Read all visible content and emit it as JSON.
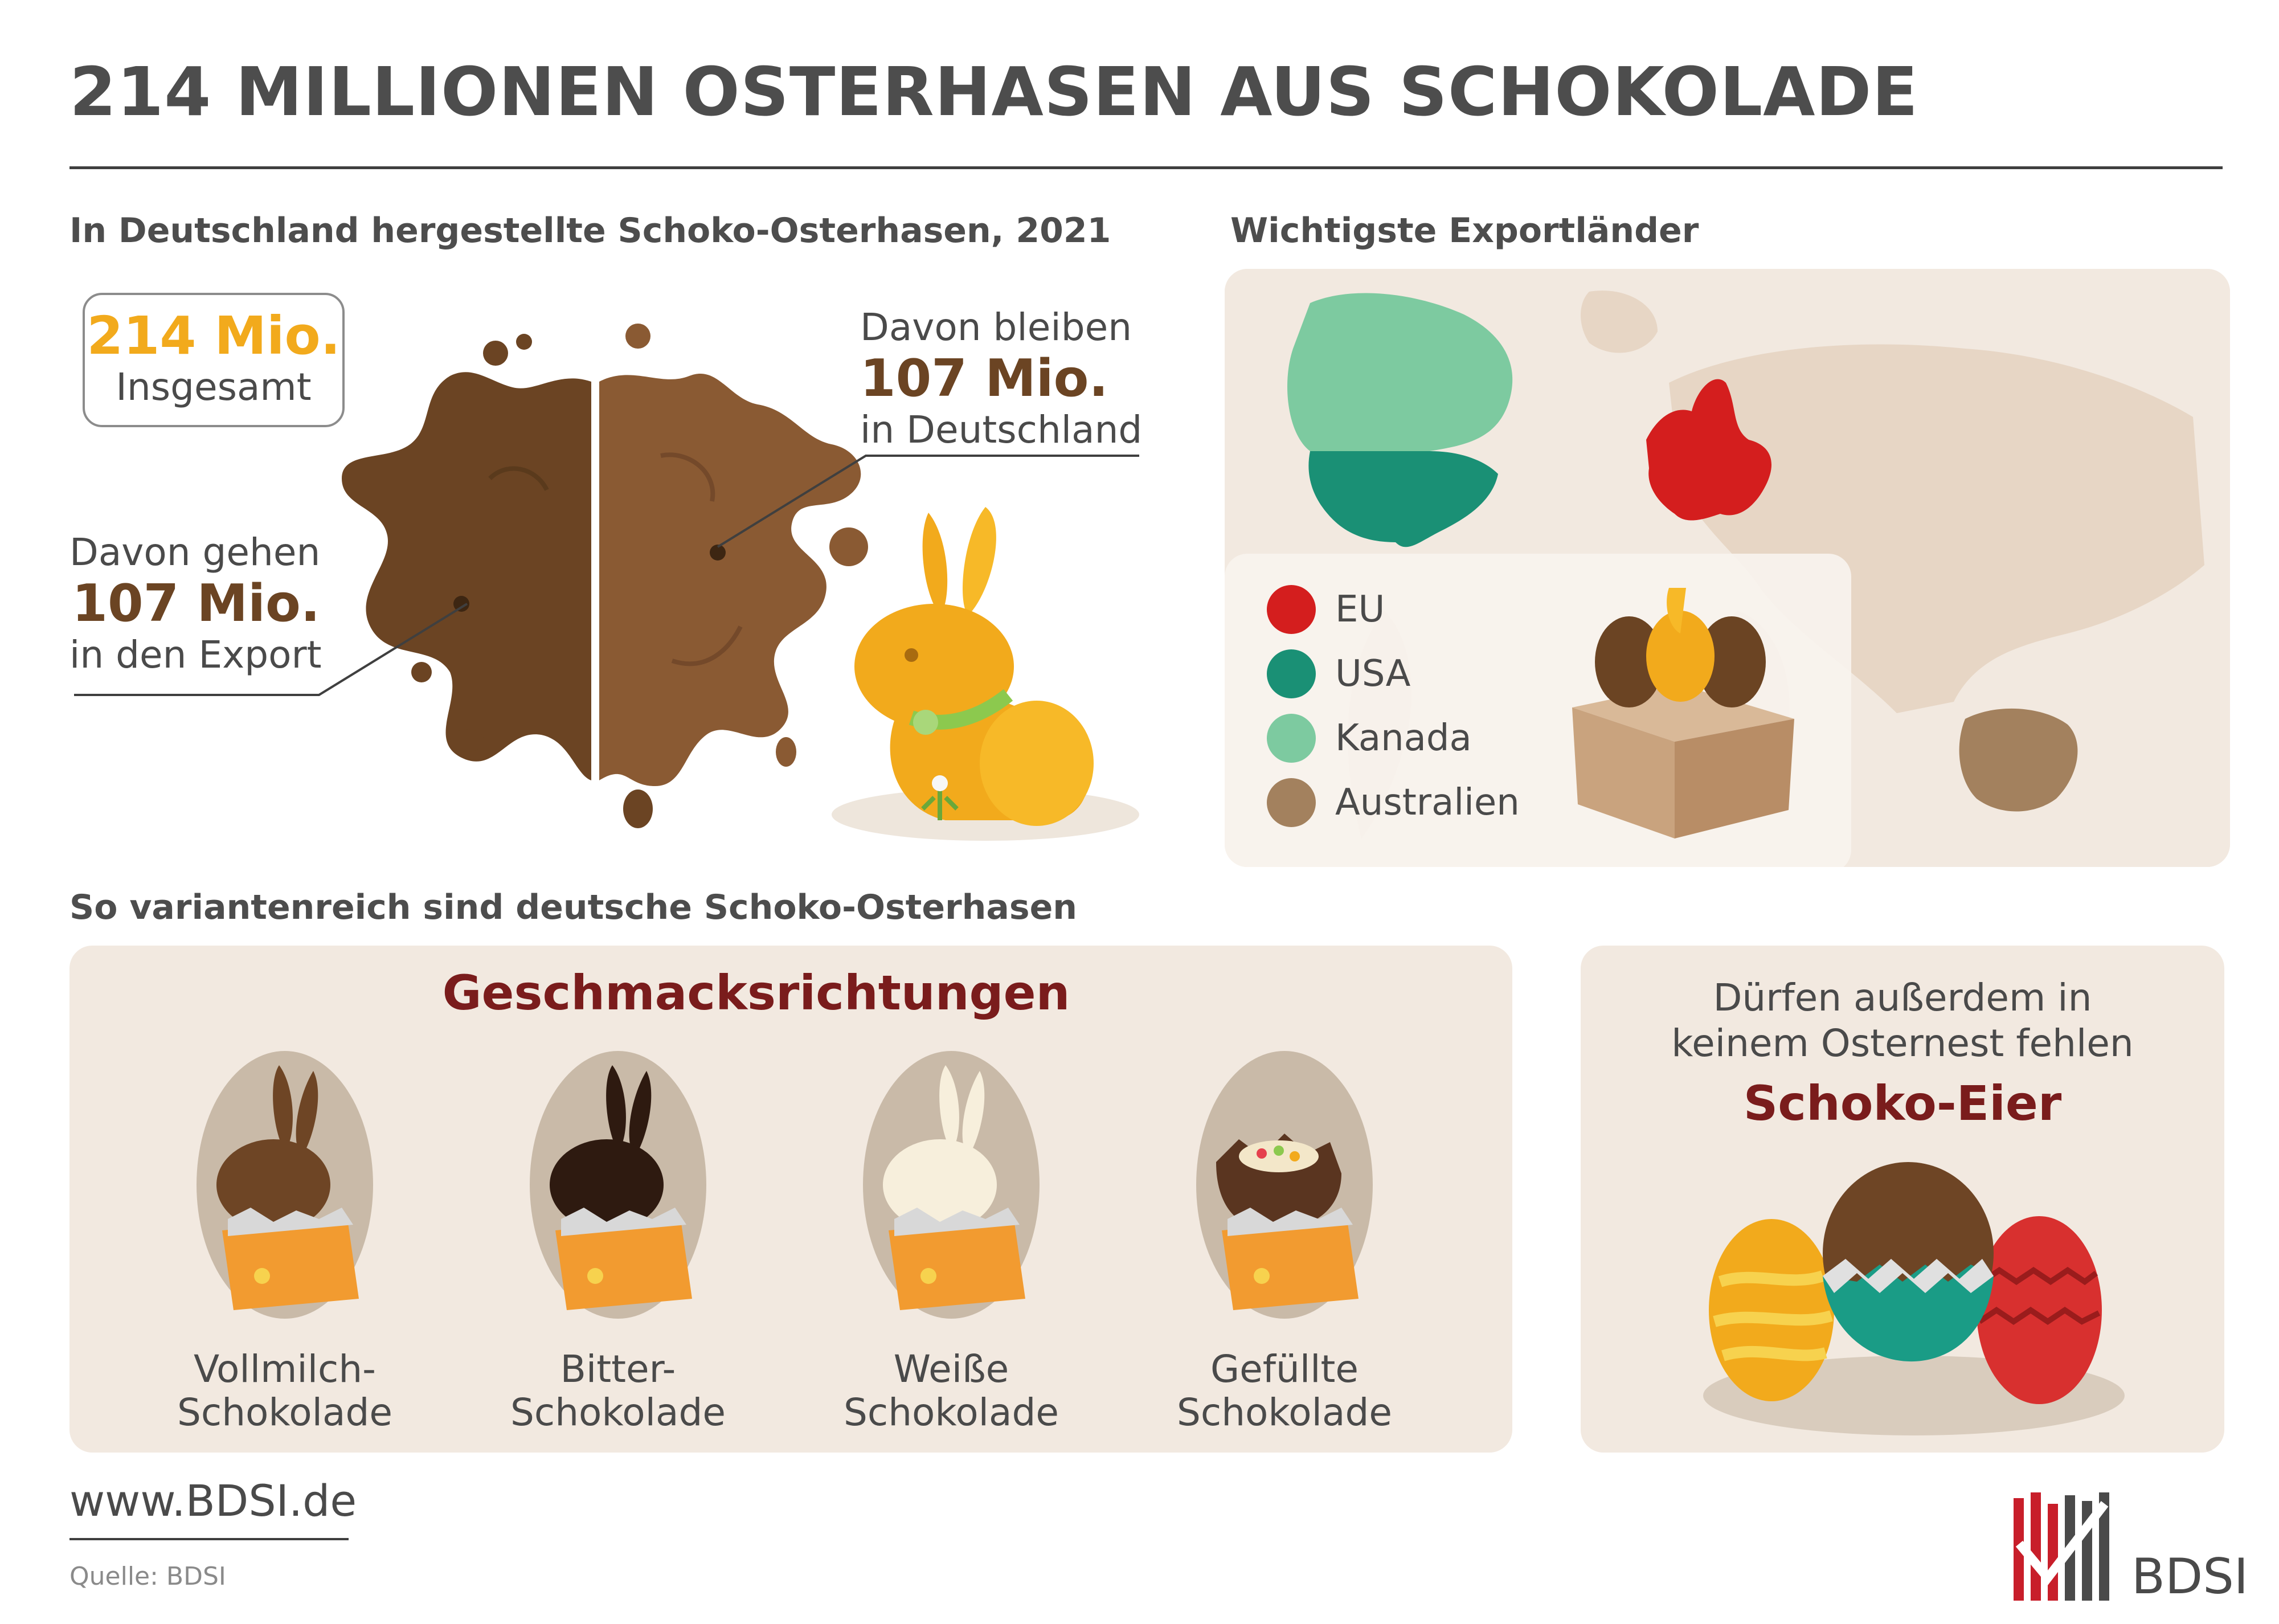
{
  "header": {
    "title": "214 MILLIONEN OSTERHASEN AUS SCHOKOLADE"
  },
  "production": {
    "heading": "In Deutschland hergestellte Schoko-Osterhasen, 2021",
    "total_value": "214 Mio.",
    "total_label": "Insgesamt",
    "stay_pre": "Davon bleiben",
    "stay_value": "107 Mio.",
    "stay_post": "in Deutschland",
    "export_pre": "Davon gehen",
    "export_value": "107 Mio.",
    "export_post": "in den Export"
  },
  "export": {
    "heading": "Wichtigste Exportländer",
    "legend": [
      {
        "label": "EU",
        "color": "#d41e1e"
      },
      {
        "label": "USA",
        "color": "#1a9075"
      },
      {
        "label": "Kanada",
        "color": "#7dcaa0"
      },
      {
        "label": "Australien",
        "color": "#a3815e"
      }
    ]
  },
  "variants": {
    "heading": "So variantenreich sind deutsche Schoko-Osterhasen",
    "flavors_heading": "Geschmacksrichtungen",
    "flavors": [
      {
        "line1": "Vollmilch-",
        "line2": "Schokolade",
        "color": "#6e4525"
      },
      {
        "line1": "Bitter-",
        "line2": "Schokolade",
        "color": "#2e1a10"
      },
      {
        "line1": "Weiße",
        "line2": "Schokolade",
        "color": "#f7efdc"
      },
      {
        "line1": "Gefüllte",
        "line2": "Schokolade",
        "color": "#5a3520"
      }
    ]
  },
  "eggs": {
    "intro_line1": "Dürfen außerdem in",
    "intro_line2": "keinem Osternest fehlen",
    "heading": "Schoko-Eier"
  },
  "footer": {
    "website": "www.BDSI.de",
    "source": "Quelle: BDSI",
    "logo_text": "BDSI"
  },
  "colors": {
    "accent_gold": "#f2aa1c",
    "chocolate": "#6b4423",
    "heading_red": "#7a1c1c",
    "panel_bg": "#f2e9e0"
  }
}
